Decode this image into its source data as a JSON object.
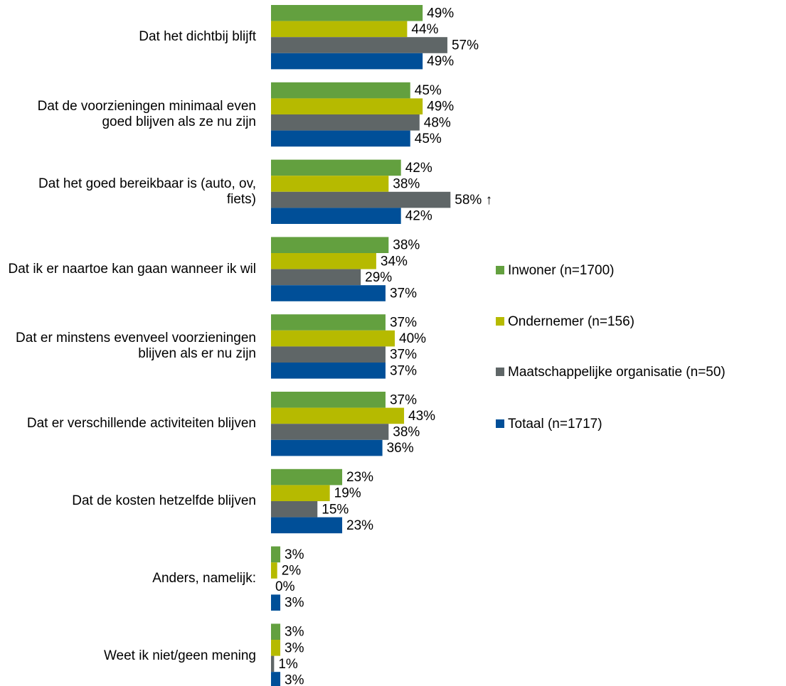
{
  "chart_data": {
    "type": "bar",
    "orientation": "horizontal",
    "categories": [
      "Dat het dichtbij blijft",
      "Dat de voorzieningen minimaal even goed blijven als ze nu zijn",
      "Dat het goed bereikbaar is (auto, ov, fiets)",
      "Dat ik er naartoe kan gaan wanneer ik wil",
      "Dat er minstens evenveel voorzieningen blijven als er nu zijn",
      "Dat er verschillende activiteiten blijven",
      "Dat de kosten hetzelfde blijven",
      "Anders, namelijk:",
      "Weet ik niet/geen mening"
    ],
    "series": [
      {
        "name": "Inwoner (n=1700)",
        "color": "#63a03f",
        "values": [
          49,
          45,
          42,
          38,
          37,
          37,
          23,
          3,
          3
        ],
        "value_labels": [
          "49%",
          "45%",
          "42%",
          "38%",
          "37%",
          "37%",
          "23%",
          "3%",
          "3%"
        ]
      },
      {
        "name": "Ondernemer (n=156)",
        "color": "#b6ba00",
        "values": [
          44,
          49,
          38,
          34,
          40,
          43,
          19,
          2,
          3
        ],
        "value_labels": [
          "44%",
          "49%",
          "38%",
          "34%",
          "40%",
          "43%",
          "19%",
          "2%",
          "3%"
        ]
      },
      {
        "name": "Maatschappelijke organisatie (n=50)",
        "color": "#5f6667",
        "values": [
          57,
          48,
          58,
          29,
          37,
          38,
          15,
          0,
          1
        ],
        "value_labels": [
          "57%",
          "48%",
          "58% ↑",
          "29%",
          "37%",
          "38%",
          "15%",
          "0%",
          "1%"
        ]
      },
      {
        "name": "Totaal (n=1717)",
        "color": "#004f98",
        "values": [
          49,
          45,
          42,
          37,
          37,
          36,
          23,
          3,
          3
        ],
        "value_labels": [
          "49%",
          "45%",
          "42%",
          "37%",
          "37%",
          "36%",
          "23%",
          "3%",
          "3%"
        ]
      }
    ],
    "xlim": [
      0,
      100
    ],
    "highlight": {
      "series": 2,
      "index": 2,
      "color": "#1a1adb"
    },
    "legend": "right"
  }
}
